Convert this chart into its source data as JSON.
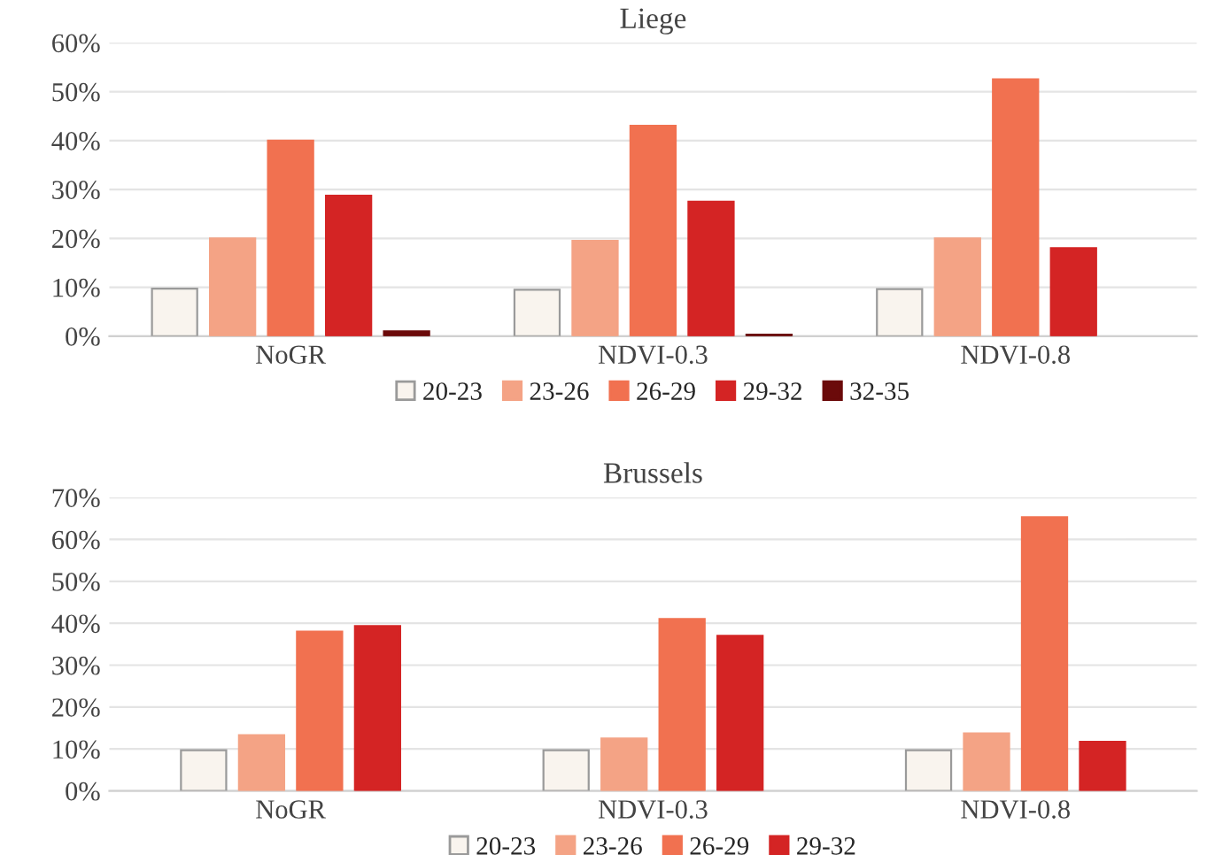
{
  "chart_data": [
    {
      "type": "bar",
      "title": "Liege",
      "categories": [
        "NoGR",
        "NDVI-0.3",
        "NDVI-0.8"
      ],
      "series": [
        {
          "name": "20-23",
          "color": "#f9f4ee",
          "values": [
            9.7,
            9.5,
            9.6
          ]
        },
        {
          "name": "23-26",
          "color": "#f4a385",
          "values": [
            20,
            19.5,
            20
          ]
        },
        {
          "name": "26-29",
          "color": "#f17150",
          "values": [
            40,
            43,
            52.5
          ]
        },
        {
          "name": "29-32",
          "color": "#d42424",
          "values": [
            28.7,
            27.5,
            18
          ]
        },
        {
          "name": "32-35",
          "color": "#6b0a0a",
          "values": [
            1,
            0.3,
            null
          ]
        }
      ],
      "ylim": [
        0,
        60
      ],
      "yticks": [
        {
          "value": 0,
          "label": "0%"
        },
        {
          "value": 10,
          "label": "10%"
        },
        {
          "value": 20,
          "label": "20%"
        },
        {
          "value": 30,
          "label": "30%"
        },
        {
          "value": 40,
          "label": "40%"
        },
        {
          "value": 50,
          "label": "50%"
        },
        {
          "value": 60,
          "label": "60%"
        }
      ],
      "grid": "y",
      "legend": "bottom"
    },
    {
      "type": "bar",
      "title": "Brussels",
      "categories": [
        "NoGR",
        "NDVI-0.3",
        "NDVI-0.8"
      ],
      "series": [
        {
          "name": "20-23",
          "color": "#f9f4ee",
          "values": [
            9.7,
            9.7,
            9.7
          ]
        },
        {
          "name": "23-26",
          "color": "#f4a385",
          "values": [
            13.3,
            12.5,
            13.7
          ]
        },
        {
          "name": "26-29",
          "color": "#f17150",
          "values": [
            38,
            41,
            65.3
          ]
        },
        {
          "name": "29-32",
          "color": "#d42424",
          "values": [
            39.3,
            37,
            11.7
          ]
        }
      ],
      "ylim": [
        0,
        70
      ],
      "yticks": [
        {
          "value": 0,
          "label": "0%"
        },
        {
          "value": 10,
          "label": "10%"
        },
        {
          "value": 20,
          "label": "20%"
        },
        {
          "value": 30,
          "label": "30%"
        },
        {
          "value": 40,
          "label": "40%"
        },
        {
          "value": 50,
          "label": "50%"
        },
        {
          "value": 60,
          "label": "60%"
        },
        {
          "value": 70,
          "label": "70%"
        }
      ],
      "grid": "y",
      "legend": "bottom"
    }
  ]
}
